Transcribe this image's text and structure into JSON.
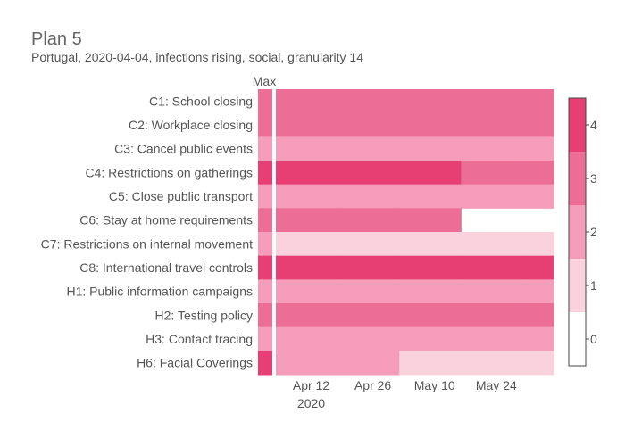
{
  "chart_data": {
    "type": "heatmap",
    "title": "Plan 5",
    "subtitle": "Portugal, 2020-04-04, infections rising, social, granularity 14",
    "max_column_label": "Max",
    "rows": [
      "C1: School closing",
      "C2: Workplace closing",
      "C3: Cancel public events",
      "C4: Restrictions on gatherings",
      "C5: Close public transport",
      "C6: Stay at home requirements",
      "C7: Restrictions on internal movement",
      "C8: International travel controls",
      "H1: Public information campaigns",
      "H2: Testing policy",
      "H3: Contact tracing",
      "H6: Facial Coverings"
    ],
    "max_values": [
      3,
      3,
      2,
      4,
      2,
      3,
      2,
      4,
      2,
      3,
      2,
      4
    ],
    "periods": [
      "2020-04-04",
      "2020-04-18",
      "2020-05-02",
      "2020-05-16",
      "2020-05-30"
    ],
    "values": [
      [
        3,
        3,
        3,
        3,
        3
      ],
      [
        3,
        3,
        3,
        3,
        3
      ],
      [
        2,
        2,
        2,
        2,
        2
      ],
      [
        4,
        4,
        4,
        3,
        3
      ],
      [
        2,
        2,
        2,
        2,
        2
      ],
      [
        3,
        3,
        3,
        null,
        null
      ],
      [
        1,
        1,
        1,
        1,
        1
      ],
      [
        4,
        4,
        4,
        4,
        4
      ],
      [
        2,
        2,
        2,
        2,
        2
      ],
      [
        3,
        3,
        3,
        3,
        3
      ],
      [
        2,
        2,
        2,
        2,
        2
      ],
      [
        2,
        2,
        1,
        1,
        1
      ]
    ],
    "x_ticks": [
      {
        "date": "2020-04-12",
        "label": "Apr 12",
        "sublabel": "2020"
      },
      {
        "date": "2020-04-26",
        "label": "Apr 26",
        "sublabel": ""
      },
      {
        "date": "2020-05-10",
        "label": "May 10",
        "sublabel": ""
      },
      {
        "date": "2020-05-24",
        "label": "May 24",
        "sublabel": ""
      }
    ],
    "x_range": [
      "2020-04-04",
      "2020-06-06"
    ],
    "colorbar": {
      "ticks": [
        0,
        1,
        2,
        3,
        4
      ],
      "range": [
        -0.5,
        4.5
      ],
      "colors": [
        "#ffffff",
        "#f9d2de",
        "#f49cb9",
        "#ec6e96",
        "#e73f74"
      ],
      "position": "right"
    },
    "grid": false
  }
}
